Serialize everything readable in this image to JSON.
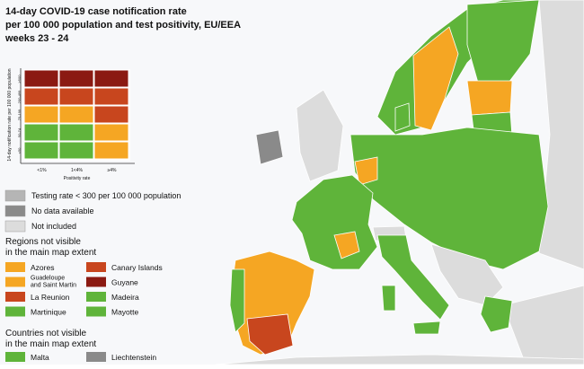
{
  "header": {
    "title": [
      "14-day COVID-19 case notification rate",
      "per 100 000 population and test positivity, EU/EEA",
      "weeks 23 - 24"
    ]
  },
  "matrix": {
    "y_title": "14-day notification rate per 100 000 population",
    "row_labels": [
      "≥500",
      "200-499",
      "75-199",
      "50-74",
      "<50"
    ],
    "x_title": "Positivity rate",
    "col_labels": [
      "<1%",
      "1<4%",
      "≥4%"
    ],
    "cells": [
      [
        "#8b1a12",
        "#8b1a12",
        "#8b1a12"
      ],
      [
        "#c8461e",
        "#c8461e",
        "#c8461e"
      ],
      [
        "#f5a623",
        "#f5a623",
        "#c8461e"
      ],
      [
        "#5fb43a",
        "#5fb43a",
        "#f5a623"
      ],
      [
        "#5fb43a",
        "#5fb43a",
        "#f5a623"
      ]
    ]
  },
  "legend": [
    {
      "label": "Testing rate < 300 per 100 000 population",
      "color": "#b5b5b5"
    },
    {
      "label": "No data available",
      "color": "#8a8a8a"
    },
    {
      "label": "Not included",
      "color": "#dcdcdc"
    }
  ],
  "regions": {
    "title": [
      "Regions not visible",
      "in the main map extent"
    ],
    "items": [
      {
        "label": [
          "Azores"
        ],
        "color": "#f5a623"
      },
      {
        "label": [
          "Canary Islands"
        ],
        "color": "#c8461e"
      },
      {
        "label": [
          "Guadeloupe",
          "and Saint Martin"
        ],
        "color": "#f5a623"
      },
      {
        "label": [
          "Guyane"
        ],
        "color": "#8b1a12"
      },
      {
        "label": [
          "La Reunion"
        ],
        "color": "#c8461e"
      },
      {
        "label": [
          "Madeira"
        ],
        "color": "#5fb43a"
      },
      {
        "label": [
          "Martinique"
        ],
        "color": "#5fb43a"
      },
      {
        "label": [
          "Mayotte"
        ],
        "color": "#5fb43a"
      }
    ]
  },
  "countries": {
    "title": [
      "Countries not visible",
      "in the main map extent"
    ],
    "items": [
      {
        "label": [
          "Malta"
        ],
        "color": "#5fb43a"
      },
      {
        "label": [
          "Liechtenstein"
        ],
        "color": "#8a8a8a"
      }
    ]
  }
}
